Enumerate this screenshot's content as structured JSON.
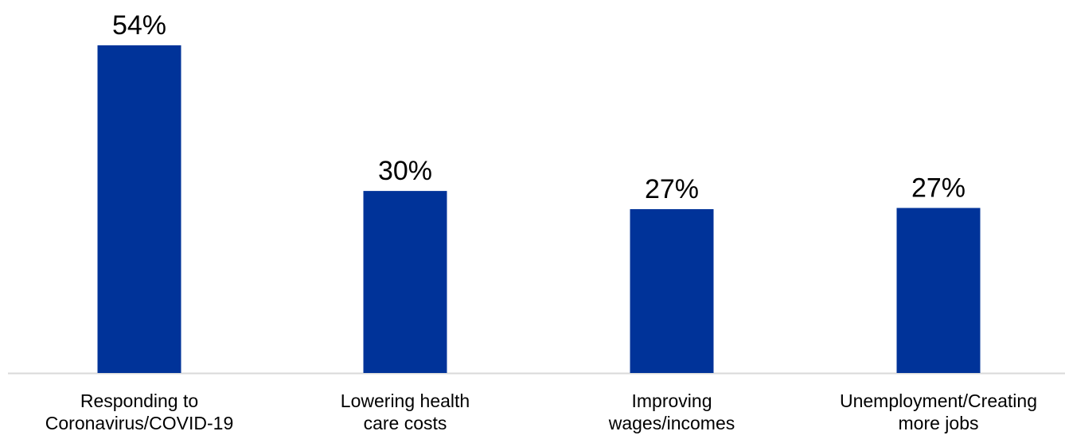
{
  "chart_data": {
    "type": "bar",
    "categories": [
      "Responding to\nCoronavirus/COVID-19",
      "Lowering health\ncare costs",
      "Improving\nwages/incomes",
      "Unemployment/Creating\nmore jobs"
    ],
    "values": [
      54,
      30,
      27,
      27.2
    ],
    "value_labels": [
      "54%",
      "30%",
      "27%",
      "27%"
    ],
    "ylim": [
      0,
      54
    ],
    "grid": false,
    "legend": false,
    "bar_color": "#003399",
    "axis_color": "#d9d9d9"
  }
}
